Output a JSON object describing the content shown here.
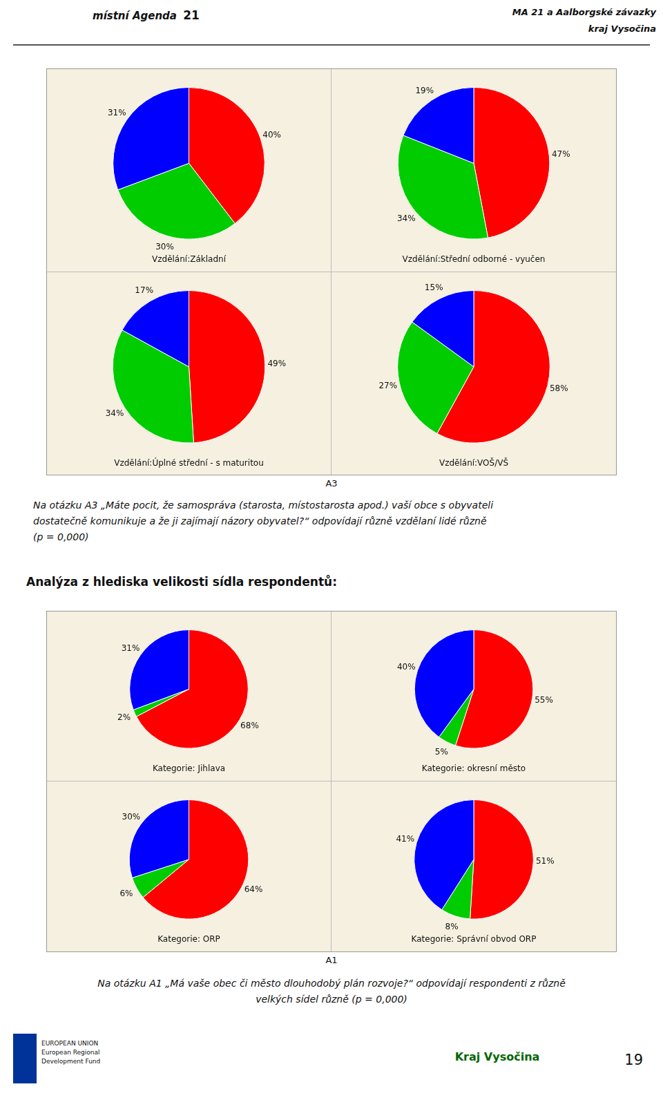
{
  "chart_data": [
    {
      "type": "pie",
      "title": "Vzdělání:Základní",
      "values": [
        40,
        30,
        31
      ],
      "value_labels": [
        "40%",
        "30%",
        "31%"
      ],
      "colors": [
        "#ff0000",
        "#00cc00",
        "#0000ff"
      ],
      "data_labels": true
    },
    {
      "type": "pie",
      "title": "Vzdělání:Střední odborné - vyučen",
      "values": [
        47,
        34,
        19
      ],
      "value_labels": [
        "47%",
        "34%",
        "19%"
      ],
      "colors": [
        "#ff0000",
        "#00cc00",
        "#0000ff"
      ],
      "data_labels": true
    },
    {
      "type": "pie",
      "title": "Vzdělání:Úplné střední - s maturitou",
      "values": [
        49,
        34,
        17
      ],
      "value_labels": [
        "49%",
        "34%",
        "17%"
      ],
      "colors": [
        "#ff0000",
        "#00cc00",
        "#0000ff"
      ],
      "data_labels": true
    },
    {
      "type": "pie",
      "title": "Vzdělání:VOŠ/VŠ",
      "values": [
        58,
        27,
        15
      ],
      "value_labels": [
        "58%",
        "27%",
        "15%"
      ],
      "colors": [
        "#ff0000",
        "#00cc00",
        "#0000ff"
      ],
      "data_labels": true
    },
    {
      "type": "pie",
      "title": "Kategorie: Jihlava",
      "values": [
        68,
        2,
        31
      ],
      "value_labels": [
        "68%",
        "2%",
        "31%"
      ],
      "colors": [
        "#ff0000",
        "#00cc00",
        "#0000ff"
      ],
      "data_labels": true
    },
    {
      "type": "pie",
      "title": "Kategorie: okresní město",
      "values": [
        55,
        5,
        40
      ],
      "value_labels": [
        "55%",
        "5%",
        "40%"
      ],
      "colors": [
        "#ff0000",
        "#00cc00",
        "#0000ff"
      ],
      "data_labels": true
    },
    {
      "type": "pie",
      "title": "Kategorie: ORP",
      "values": [
        64,
        6,
        30
      ],
      "value_labels": [
        "64%",
        "6%",
        "30%"
      ],
      "colors": [
        "#ff0000",
        "#00cc00",
        "#0000ff"
      ],
      "data_labels": true
    },
    {
      "type": "pie",
      "title": "Kategorie: Správní obvod ORP",
      "values": [
        51,
        8,
        41
      ],
      "value_labels": [
        "51%",
        "8%",
        "41%"
      ],
      "colors": [
        "#ff0000",
        "#00cc00",
        "#0000ff"
      ],
      "data_labels": true
    }
  ],
  "annotations": [
    "místní Agenda ",
    "21",
    "MA 21 a Aalborgské závazky",
    "kraj Vysočina",
    "A3",
    "Na otázku A3 „Máte pocit, že samospráva (starosta, místostarosta apod.) vaší obce s obyvateli\ndostatečně komunikuje a že ji zajímají názory obyvatel?“ odpovídají různě vzdělaní lidé různě\n(p = 0,000)",
    "Analýza z hlediska velikosti sídla respondentů:",
    "A1",
    "Na otázku A1 „Má vaše obec či město dlouhodobý plán rozvoje?“ odpovídají respondenti z různě\nvelkých sídel různě (p = 0,000)",
    "EUROPEAN UNION\nEuropean Regional\nDevelopment Fund",
    "Kraj Vysočina",
    "19"
  ]
}
